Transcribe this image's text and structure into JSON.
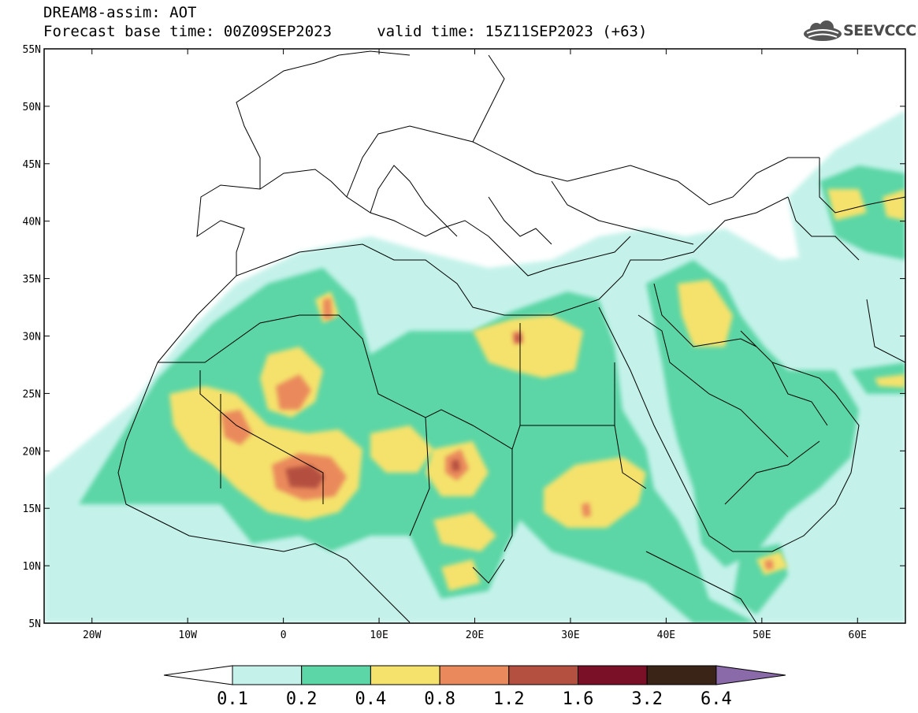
{
  "header": {
    "line1": "DREAM8-assim: AOT",
    "line2": "Forecast base time: 00Z09SEP2023     valid time: 15Z11SEP2023 (+63)"
  },
  "logo": {
    "text": "SEEVCCC",
    "icon": "cloud-logo-icon"
  },
  "map": {
    "lon_range": [
      -25,
      65
    ],
    "lat_range": [
      5,
      55
    ],
    "lat_labels": [
      "55N",
      "50N",
      "45N",
      "40N",
      "35N",
      "30N",
      "25N",
      "20N",
      "15N",
      "10N",
      "5N"
    ],
    "lon_labels": [
      "20W",
      "10W",
      "0",
      "10E",
      "20E",
      "30E",
      "40E",
      "50E",
      "60E"
    ]
  },
  "colorbar": {
    "labels": [
      "0.1",
      "0.2",
      "0.4",
      "0.8",
      "1.2",
      "1.6",
      "3.2",
      "6.4"
    ],
    "colors": [
      "#ffffff",
      "#c4f2ea",
      "#5cd6a6",
      "#f5e26c",
      "#ea8a5c",
      "#b45040",
      "#7a1028",
      "#3a2418",
      "#8a6aa8"
    ]
  }
}
